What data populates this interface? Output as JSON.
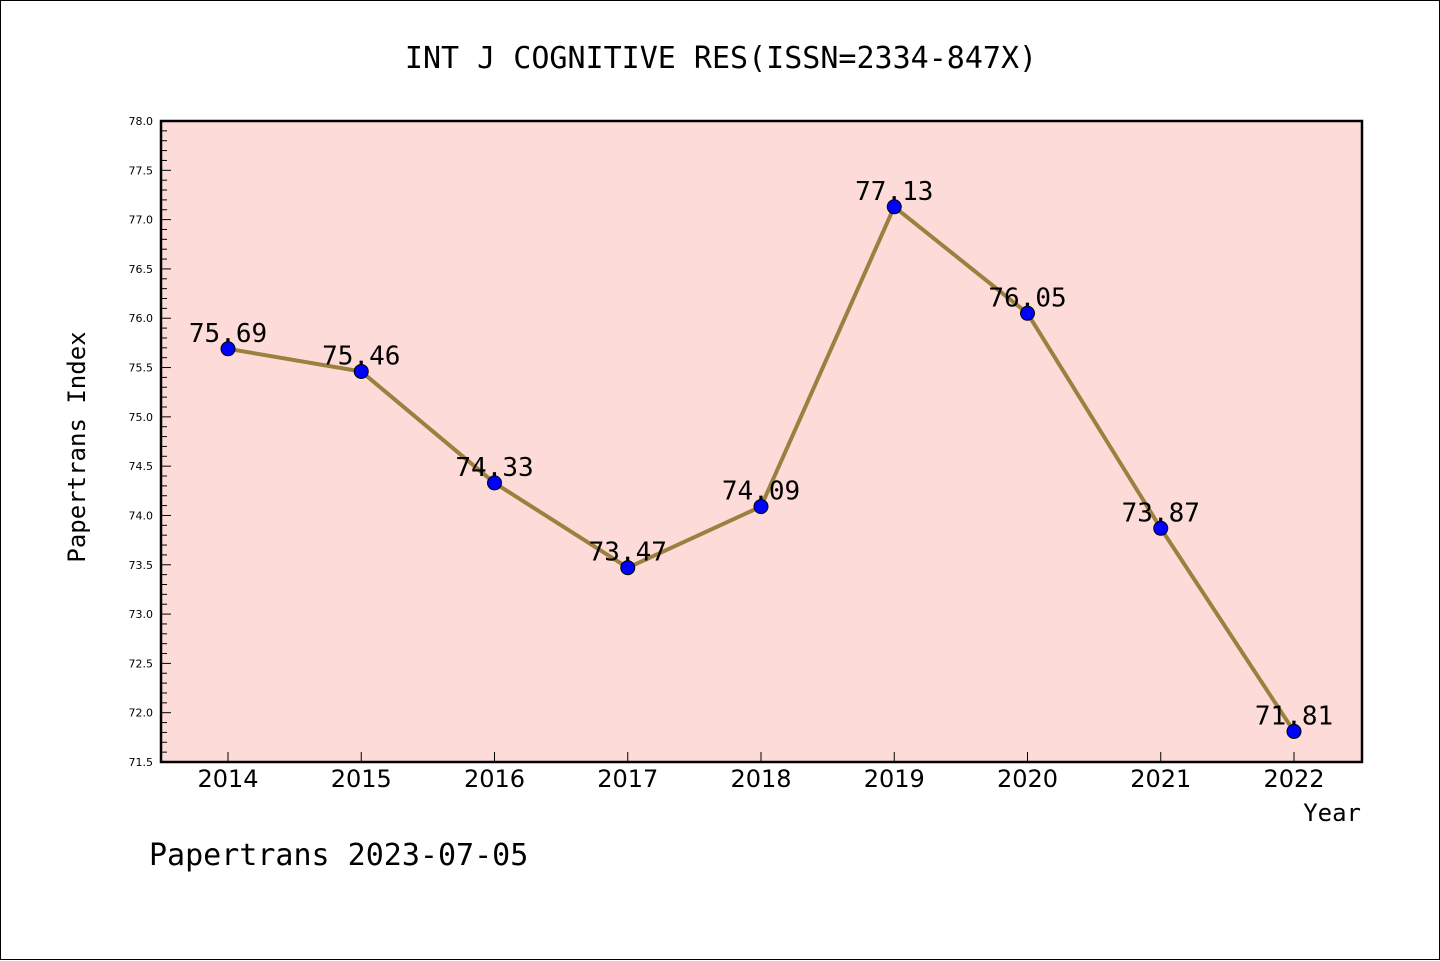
{
  "chart_data": {
    "type": "line",
    "title": "INT J COGNITIVE RES(ISSN=2334-847X)",
    "xlabel": "Year",
    "ylabel": "Papertrans Index",
    "categories": [
      "2014",
      "2015",
      "2016",
      "2017",
      "2018",
      "2019",
      "2020",
      "2021",
      "2022"
    ],
    "series": [
      {
        "values": [
          75.69,
          75.46,
          74.33,
          73.47,
          74.09,
          77.13,
          76.05,
          73.87,
          71.81
        ],
        "labels": [
          "75.69",
          "75.46",
          "74.33",
          "73.47",
          "74.09",
          "77.13",
          "76.05",
          "73.87",
          "71.81"
        ]
      }
    ],
    "ylim": [
      71.5,
      78.0
    ],
    "yticks": [
      "71.5",
      "72.0",
      "72.5",
      "73.0",
      "73.5",
      "74.0",
      "74.5",
      "75.0",
      "75.5",
      "76.0",
      "76.5",
      "77.0",
      "77.5",
      "78.0"
    ],
    "grid": false,
    "colors": {
      "plot_background": "#FDDBD8",
      "line": "#9B8040",
      "marker": "#0000FF"
    }
  },
  "footer": "Papertrans 2023-07-05"
}
